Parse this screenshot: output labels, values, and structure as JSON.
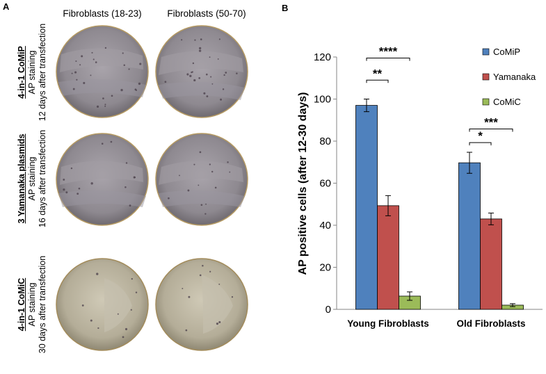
{
  "panel_a": {
    "letter": "A",
    "columns": [
      "Fibroblasts (18-23)",
      "Fibroblasts (50-70)"
    ],
    "rows": [
      {
        "title": "4-in-1 CoMiP",
        "line2": "AP staining",
        "line3": "12 days after transfection"
      },
      {
        "title": "3 Yamanaka plasmids",
        "line2": "AP staining",
        "line3": "16 days after transfection"
      },
      {
        "title": "4-in-1 CoMiC",
        "line2": "AP staining",
        "line3": "30 days after transfection"
      }
    ],
    "dish_colors": [
      "#8f8a92",
      "#8d8890",
      "#b9b3a0"
    ]
  },
  "panel_b": {
    "letter": "B"
  },
  "chart_data": {
    "type": "bar",
    "categories": [
      "Young Fibroblasts",
      "Old Fibroblasts"
    ],
    "ylabel": "AP positive cells (after 12-30 days)",
    "xlabel": "",
    "ylim": [
      0,
      120
    ],
    "yticks": [
      0,
      20,
      40,
      60,
      80,
      100,
      120
    ],
    "grid": false,
    "legend_position": "top-right",
    "series": [
      {
        "name": "CoMiP",
        "color": "#4f81bd",
        "values": [
          97,
          69.7
        ],
        "errors": [
          3,
          5
        ]
      },
      {
        "name": "Yamanaka",
        "color": "#c0504d",
        "values": [
          49.3,
          43
        ],
        "errors": [
          4.8,
          2.8
        ]
      },
      {
        "name": "CoMiC",
        "color": "#9bbb59",
        "values": [
          6.3,
          2
        ],
        "errors": [
          2,
          0.7
        ]
      }
    ],
    "significance": [
      {
        "category": 0,
        "from_series": 0,
        "to_series": 1,
        "label": "**",
        "level": 109
      },
      {
        "category": 0,
        "from_series": 0,
        "to_series": 2,
        "label": "****",
        "level": 119.5
      },
      {
        "category": 1,
        "from_series": 0,
        "to_series": 1,
        "label": "*",
        "level": 79.3
      },
      {
        "category": 1,
        "from_series": 0,
        "to_series": 2,
        "label": "***",
        "level": 85.8
      }
    ]
  }
}
